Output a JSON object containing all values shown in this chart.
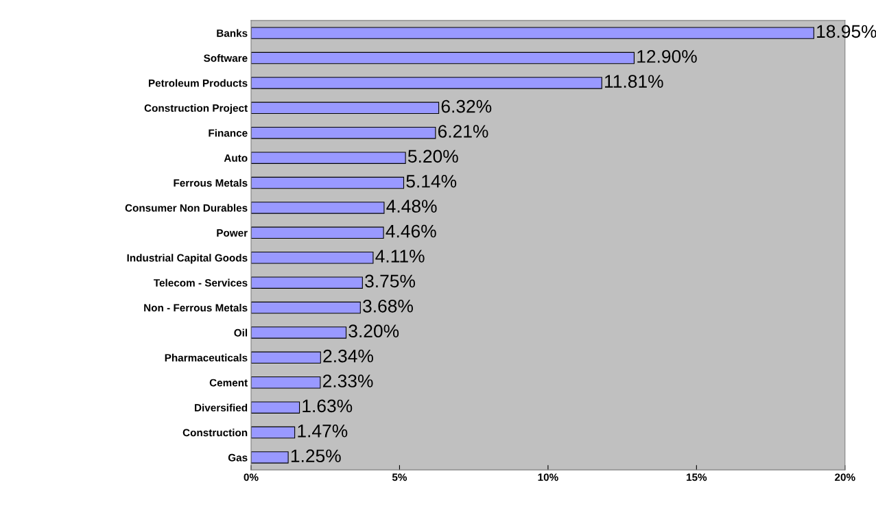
{
  "chart_data": {
    "type": "bar",
    "orientation": "horizontal",
    "categories": [
      "Banks",
      "Software",
      "Petroleum Products",
      "Construction Project",
      "Finance",
      "Auto",
      "Ferrous Metals",
      "Consumer Non Durables",
      "Power",
      "Industrial Capital Goods",
      "Telecom - Services",
      "Non - Ferrous Metals",
      "Oil",
      "Pharmaceuticals",
      "Cement",
      "Diversified",
      "Construction",
      "Gas"
    ],
    "values": [
      18.95,
      12.9,
      11.81,
      6.32,
      6.21,
      5.2,
      5.14,
      4.48,
      4.46,
      4.11,
      3.75,
      3.68,
      3.2,
      2.34,
      2.33,
      1.63,
      1.47,
      1.25
    ],
    "value_labels": [
      "18.95%",
      "12.90%",
      "11.81%",
      "6.32%",
      "6.21%",
      "5.20%",
      "5.14%",
      "4.48%",
      "4.46%",
      "4.11%",
      "3.75%",
      "3.68%",
      "3.20%",
      "2.34%",
      "2.33%",
      "1.63%",
      "1.47%",
      "1.25%"
    ],
    "color": "#9999ff",
    "xlim": [
      0,
      20
    ],
    "xticks": [
      {
        "value": 0,
        "label": "0%"
      },
      {
        "value": 5,
        "label": "5%"
      },
      {
        "value": 10,
        "label": "10%"
      },
      {
        "value": 15,
        "label": "15%"
      },
      {
        "value": 20,
        "label": "20%"
      }
    ],
    "grid": false,
    "legend": false
  }
}
